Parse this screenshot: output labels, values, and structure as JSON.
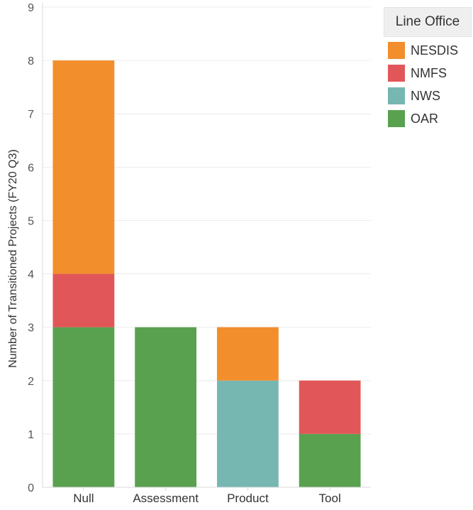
{
  "chart_data": {
    "type": "bar",
    "stacked": true,
    "categories": [
      "Null",
      "Assessment",
      "Product",
      "Tool"
    ],
    "series": [
      {
        "name": "OAR",
        "color": "#59a14f",
        "values": [
          3,
          3,
          0,
          1
        ]
      },
      {
        "name": "NWS",
        "color": "#76b7b2",
        "values": [
          0,
          0,
          2,
          0
        ]
      },
      {
        "name": "NMFS",
        "color": "#e15759",
        "values": [
          1,
          0,
          0,
          1
        ]
      },
      {
        "name": "NESDIS",
        "color": "#f28e2b",
        "values": [
          4,
          0,
          1,
          0
        ]
      }
    ],
    "ylabel": "Number of Transitioned Projects (FY20 Q3)",
    "xlabel": "",
    "ylim": [
      0,
      9
    ],
    "yticks": [
      0,
      1,
      2,
      3,
      4,
      5,
      6,
      7,
      8,
      9
    ],
    "grid": true,
    "legend_position": "top-right"
  },
  "legend": {
    "title": "Line Office",
    "items": [
      {
        "label": "NESDIS",
        "color": "#f28e2b"
      },
      {
        "label": "NMFS",
        "color": "#e15759"
      },
      {
        "label": "NWS",
        "color": "#76b7b2"
      },
      {
        "label": "OAR",
        "color": "#59a14f"
      }
    ]
  }
}
